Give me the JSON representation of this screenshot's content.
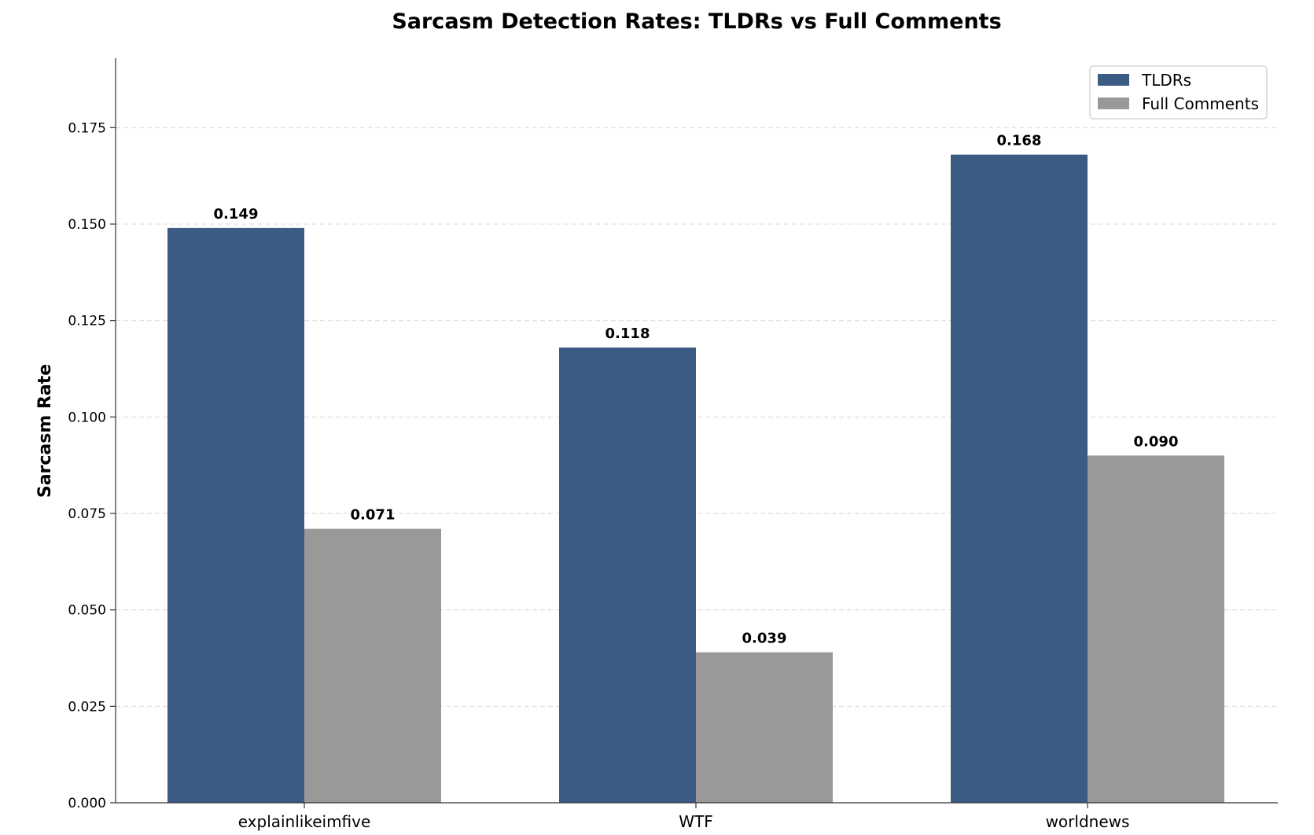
{
  "chart_data": {
    "type": "bar",
    "title": "Sarcasm Detection Rates: TLDRs vs Full Comments",
    "xlabel": "",
    "ylabel": "Sarcasm Rate",
    "categories": [
      "explainlikeimfive",
      "WTF",
      "worldnews"
    ],
    "series": [
      {
        "name": "TLDRs",
        "values": [
          0.149,
          0.118,
          0.168
        ],
        "labels": [
          "0.149",
          "0.118",
          "0.168"
        ],
        "color": "#3b5b84"
      },
      {
        "name": "Full Comments",
        "values": [
          0.071,
          0.039,
          0.09
        ],
        "labels": [
          "0.071",
          "0.039",
          "0.090"
        ],
        "color": "#999999"
      }
    ],
    "ylim": [
      0,
      0.193
    ],
    "yticks": [
      0.0,
      0.025,
      0.05,
      0.075,
      0.1,
      0.125,
      0.15,
      0.175
    ],
    "ytick_labels": [
      "0.000",
      "0.025",
      "0.050",
      "0.075",
      "0.100",
      "0.125",
      "0.150",
      "0.175"
    ],
    "grid": "y-dashed",
    "legend_position": "top-right"
  }
}
